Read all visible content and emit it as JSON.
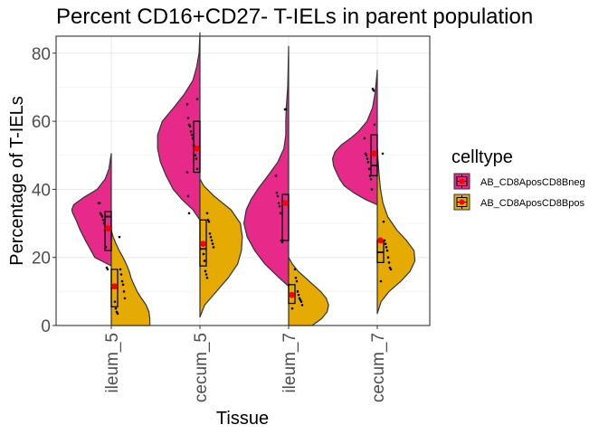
{
  "chart_data": {
    "type": "split-violin",
    "title": "Percent CD16+CD27- T-IELs in parent population",
    "xlabel": "Tissue",
    "ylabel": "Percentage of T-IELs",
    "ylim": [
      0,
      85
    ],
    "yticks": [
      0,
      20,
      40,
      60,
      80
    ],
    "categories": [
      "ileum_5",
      "cecum_5",
      "ileum_7",
      "cecum_7"
    ],
    "grid": true,
    "legend": {
      "title": "celltype",
      "placement": "right",
      "entries": [
        "AB_CD8AposCD8Bneg",
        "AB_CD8AposCD8Bpos"
      ]
    },
    "series": [
      {
        "name": "AB_CD8AposCD8Bneg",
        "color": "#E7298A",
        "box": [
          {
            "q1": 22,
            "median": 32,
            "q3": 33.5
          },
          {
            "q1": 45,
            "median": 52.5,
            "q3": 60
          },
          {
            "q1": 25,
            "median": 36,
            "q3": 38.5
          },
          {
            "q1": 44,
            "median": 47,
            "q3": 56
          }
        ],
        "mean": [
          28.5,
          52,
          36,
          50.5
        ],
        "violin": [
          {
            "y": [
              17.5,
              20,
              25,
              28,
              31,
              33,
              34,
              35.5,
              37.5,
              40,
              43,
              46,
              50.5
            ],
            "w": [
              0,
              0.35,
              0.55,
              0.66,
              0.75,
              0.82,
              0.84,
              0.8,
              0.6,
              0.3,
              0.13,
              0.05,
              0
            ]
          },
          {
            "y": [
              31,
              34,
              37,
              40,
              44,
              48,
              52,
              56,
              60,
              64,
              68,
              72,
              76,
              80,
              86
            ],
            "w": [
              0,
              0.15,
              0.38,
              0.57,
              0.72,
              0.84,
              0.9,
              0.9,
              0.8,
              0.56,
              0.33,
              0.15,
              0.07,
              0.02,
              0
            ]
          },
          {
            "y": [
              11.5,
              14,
              18,
              22,
              26,
              30,
              34,
              37,
              40,
              44,
              48,
              52,
              56,
              60,
              64,
              70,
              76,
              82
            ],
            "w": [
              0,
              0.2,
              0.5,
              0.72,
              0.88,
              0.95,
              0.9,
              0.8,
              0.66,
              0.44,
              0.23,
              0.1,
              0.06,
              0.06,
              0.05,
              0.02,
              0.01,
              0
            ]
          },
          {
            "y": [
              35.5,
              37,
              39,
              41,
              43,
              45,
              47,
              49,
              51,
              53,
              55,
              57,
              60,
              64,
              68,
              72,
              75
            ],
            "w": [
              0,
              0.25,
              0.5,
              0.7,
              0.8,
              0.87,
              0.93,
              0.95,
              0.9,
              0.77,
              0.57,
              0.4,
              0.22,
              0.1,
              0.05,
              0.02,
              0
            ]
          }
        ],
        "points": [
          [
            36,
            36,
            33,
            32.5,
            32,
            31,
            30,
            28,
            23,
            17,
            16.5
          ],
          [
            66.5,
            65,
            61,
            59,
            58.5,
            57,
            56,
            55,
            53,
            52,
            50,
            49,
            46,
            45,
            38,
            33
          ],
          [
            63.5,
            63.5,
            44,
            39,
            38,
            36,
            35,
            33,
            25,
            24.5
          ],
          [
            69.5,
            69,
            59,
            55,
            50.5,
            50,
            49,
            48,
            46,
            44,
            43,
            40
          ]
        ]
      },
      {
        "name": "AB_CD8AposCD8Bpos",
        "color": "#E6AB02",
        "box": [
          {
            "q1": 5.5,
            "median": 11,
            "q3": 16.5
          },
          {
            "q1": 17.5,
            "median": 22.5,
            "q3": 31
          },
          {
            "q1": 6.5,
            "median": 9,
            "q3": 12
          },
          {
            "q1": 18.5,
            "median": 21.5,
            "q3": 25
          }
        ],
        "mean": [
          11.5,
          24,
          9,
          25
        ],
        "violin": [
          {
            "y": [
              0,
              2,
              4,
              6,
              8,
              10,
              12,
              14,
              16,
              18,
              20,
              22,
              24,
              26,
              28
            ],
            "w": [
              0.82,
              0.82,
              0.8,
              0.74,
              0.64,
              0.55,
              0.48,
              0.42,
              0.38,
              0.32,
              0.25,
              0.17,
              0.1,
              0.04,
              0
            ]
          },
          {
            "y": [
              2.5,
              6,
              10,
              14,
              18,
              22,
              26,
              30,
              34,
              38,
              41,
              43
            ],
            "w": [
              0,
              0.1,
              0.35,
              0.6,
              0.8,
              0.88,
              0.9,
              0.86,
              0.66,
              0.3,
              0.08,
              0
            ]
          },
          {
            "y": [
              0,
              2,
              4,
              6,
              8,
              10,
              12,
              14,
              16,
              18,
              20
            ],
            "w": [
              0.5,
              0.7,
              0.82,
              0.85,
              0.8,
              0.68,
              0.52,
              0.36,
              0.2,
              0.08,
              0
            ]
          },
          {
            "y": [
              3.5,
              7,
              10,
              13,
              16,
              19,
              22,
              25,
              28,
              32,
              36,
              40,
              44,
              48,
              52
            ],
            "w": [
              0,
              0.08,
              0.25,
              0.5,
              0.7,
              0.8,
              0.78,
              0.62,
              0.42,
              0.22,
              0.12,
              0.07,
              0.04,
              0.02,
              0
            ]
          }
        ],
        "points": [
          [
            26,
            16.5,
            15,
            13,
            12,
            10,
            8,
            7,
            5,
            4,
            3.5
          ],
          [
            33,
            31,
            30.5,
            27,
            26,
            25,
            24,
            23,
            21,
            19,
            16,
            15,
            14
          ],
          [
            16.5,
            14,
            13,
            10,
            9,
            8,
            7.5,
            7,
            6,
            5
          ],
          [
            50.5,
            30.5,
            25,
            24,
            23,
            22,
            20,
            18.5,
            17,
            16.5,
            13
          ]
        ]
      }
    ]
  }
}
